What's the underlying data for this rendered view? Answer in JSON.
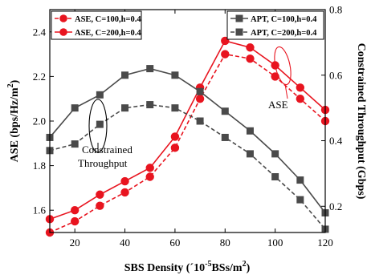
{
  "chart_data": {
    "type": "line",
    "x": [
      10,
      20,
      30,
      40,
      50,
      60,
      70,
      80,
      90,
      100,
      110,
      120
    ],
    "xlim": [
      10,
      120
    ],
    "xticks": [
      20,
      40,
      60,
      80,
      100,
      120
    ],
    "xlabel_parts": [
      "SBS Density (´10",
      "-5",
      "BSs/m",
      "2",
      ")"
    ],
    "left_axis": {
      "label_parts": [
        "ASE (bps/Hz/m",
        "2",
        ")"
      ],
      "ylim": [
        1.5,
        2.5
      ],
      "ticks": [
        1.6,
        1.8,
        2.0,
        2.2,
        2.4
      ],
      "tick_labels": [
        "1.6",
        "1.8",
        "2.0",
        "2.2",
        "2.4"
      ]
    },
    "right_axis": {
      "label": "Constrained Throughput (Gbps)",
      "ylim": [
        0.12,
        0.8
      ],
      "ticks": [
        0.2,
        0.4,
        0.6,
        0.8
      ],
      "tick_labels": [
        "0.2",
        "0.4",
        "0.6",
        "0.8"
      ]
    },
    "series": [
      {
        "name": "ASE, C=100,h=0.4",
        "axis": "left",
        "color": "#e8141f",
        "marker": "circle",
        "dash": "dashed",
        "values": [
          1.5,
          1.55,
          1.62,
          1.68,
          1.75,
          1.88,
          2.1,
          2.3,
          2.28,
          2.2,
          2.1,
          2.0
        ]
      },
      {
        "name": "ASE, C=200,h=0.4",
        "axis": "left",
        "color": "#e8141f",
        "marker": "circle",
        "dash": "solid",
        "values": [
          1.56,
          1.6,
          1.67,
          1.73,
          1.79,
          1.93,
          2.15,
          2.36,
          2.33,
          2.25,
          2.15,
          2.05
        ]
      },
      {
        "name": "APT, C=100,h=0.4",
        "axis": "right",
        "color": "#4a4a4a",
        "marker": "square",
        "dash": "solid",
        "values": [
          0.41,
          0.5,
          0.54,
          0.6,
          0.62,
          0.6,
          0.55,
          0.49,
          0.43,
          0.36,
          0.28,
          0.18
        ]
      },
      {
        "name": "APT, C=200,h=0.4",
        "axis": "right",
        "color": "#4a4a4a",
        "marker": "square",
        "dash": "dashed",
        "values": [
          0.37,
          0.39,
          0.45,
          0.5,
          0.51,
          0.5,
          0.46,
          0.41,
          0.36,
          0.29,
          0.22,
          0.13
        ]
      }
    ],
    "annotations": [
      {
        "lines": [
          "Constrained",
          "Throughput"
        ]
      },
      {
        "lines": [
          "ASE"
        ]
      }
    ],
    "legend_placement": "top-left and top-right",
    "grid": false
  }
}
